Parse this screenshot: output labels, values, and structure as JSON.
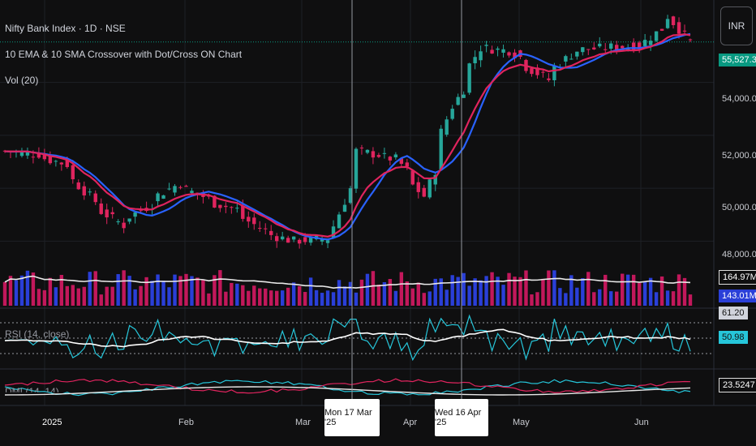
{
  "header": {
    "symbol_line": "Nifty Bank Index · 1D · NSE",
    "indicator_line": "10 EMA & 10 SMA Crossover with Dot/Cross ON Chart",
    "vol_line": "Vol (20)",
    "rsi_label": "RSI (14, close)",
    "dmi_label": "DMI (14, 14)"
  },
  "currency_button": "INR",
  "price_scale": {
    "ticks": [
      "54,000.00",
      "52,000.00",
      "50,000.00",
      "48,000.00"
    ],
    "last_price": "55,527.35",
    "volume_ma": "164.97M",
    "volume_last": "143.01M",
    "rsi_ma": "61.20",
    "rsi_last": "50.98",
    "dmi_last": "23.5247"
  },
  "crosshair_labels": [
    "Mon 17 Mar '25",
    "Wed 16 Apr '25"
  ],
  "x_axis": {
    "labels": [
      "2025",
      "Feb",
      "Mar",
      "Apr",
      "May",
      "Jun"
    ]
  },
  "colors": {
    "up": "#26a69a",
    "down": "#e0245e",
    "ema": "#e0245e",
    "sma": "#2962ff",
    "vol_up": "#2a3fd8",
    "vol_down": "#c2185b",
    "rsi": "#26c6da",
    "rsi_ma": "#ffffff"
  },
  "chart_data": {
    "type": "candlestick",
    "title": "Nifty Bank Index · 1D · NSE",
    "ylim": [
      47000,
      56500
    ],
    "x_labels": [
      "2025",
      "Feb",
      "Mar",
      "Apr",
      "May",
      "Jun"
    ],
    "close_anchors": [
      {
        "date": "2024-12-26",
        "close": 51400
      },
      {
        "date": "2025-01-03",
        "close": 51300
      },
      {
        "date": "2025-01-10",
        "close": 50900
      },
      {
        "date": "2025-01-17",
        "close": 49500
      },
      {
        "date": "2025-01-24",
        "close": 48600
      },
      {
        "date": "2025-01-31",
        "close": 49400
      },
      {
        "date": "2025-02-07",
        "close": 50200
      },
      {
        "date": "2025-02-14",
        "close": 49600
      },
      {
        "date": "2025-02-21",
        "close": 49200
      },
      {
        "date": "2025-02-28",
        "close": 48400
      },
      {
        "date": "2025-03-07",
        "close": 48000
      },
      {
        "date": "2025-03-17",
        "close": 48100
      },
      {
        "date": "2025-03-24",
        "close": 51400
      },
      {
        "date": "2025-04-02",
        "close": 51100
      },
      {
        "date": "2025-04-09",
        "close": 49700
      },
      {
        "date": "2025-04-16",
        "close": 53100
      },
      {
        "date": "2025-04-23",
        "close": 55300
      },
      {
        "date": "2025-04-30",
        "close": 55200
      },
      {
        "date": "2025-05-09",
        "close": 54100
      },
      {
        "date": "2025-05-16",
        "close": 55200
      },
      {
        "date": "2025-05-23",
        "close": 55300
      },
      {
        "date": "2025-06-02",
        "close": 55400
      },
      {
        "date": "2025-06-09",
        "close": 56500
      },
      {
        "date": "2025-06-13",
        "close": 55527
      }
    ],
    "series": [
      {
        "name": "10 EMA",
        "color": "#e0245e"
      },
      {
        "name": "10 SMA",
        "color": "#2962ff"
      }
    ],
    "volume_ma_last": 164.97,
    "volume_last": 143.01,
    "rsi_last": 50.98,
    "rsi_ma_last": 61.2,
    "dmi_last": 23.5247
  }
}
